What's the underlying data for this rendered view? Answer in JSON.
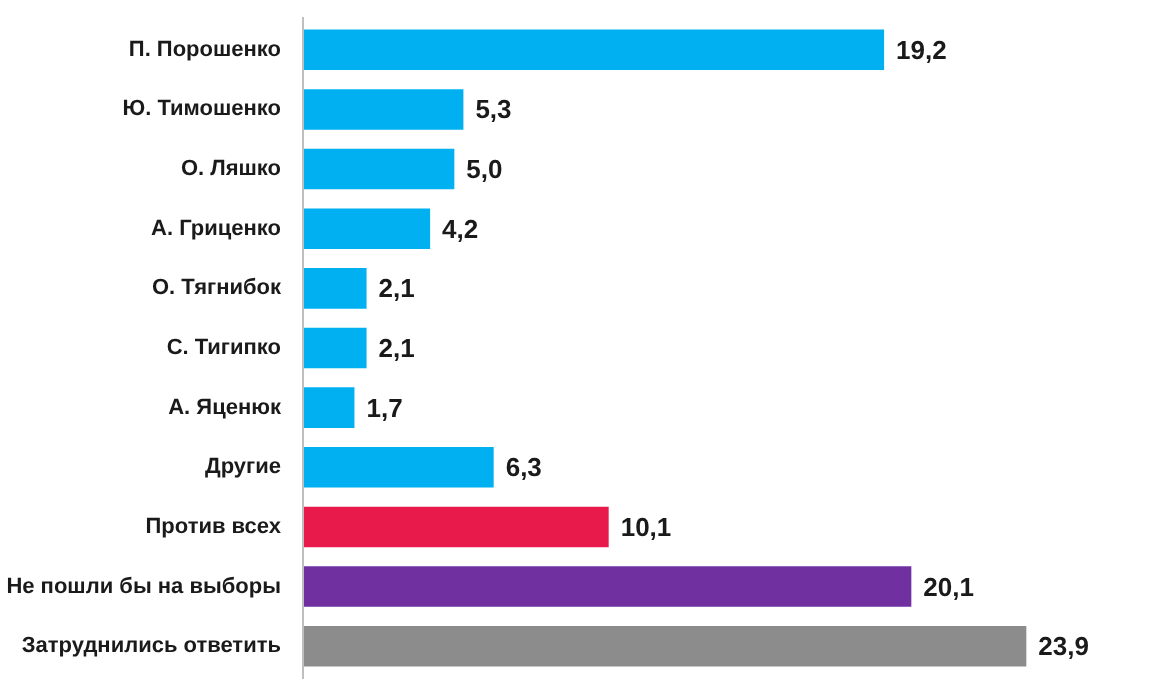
{
  "chart_data": {
    "type": "bar",
    "orientation": "horizontal",
    "categories": [
      "П. Порошенко",
      "Ю. Тимошенко",
      "О. Ляшко",
      "А. Гриценко",
      "О. Тягнибок",
      "С. Тигипко",
      "А. Яценюк",
      "Другие",
      "Против всех",
      "Не пошли бы на выборы",
      "Затруднились ответить"
    ],
    "values": [
      19.2,
      5.3,
      5.0,
      4.2,
      2.1,
      2.1,
      1.7,
      6.3,
      10.1,
      20.1,
      23.9
    ],
    "value_labels": [
      "19,2",
      "5,3",
      "5,0",
      "4,2",
      "2,1",
      "2,1",
      "1,7",
      "6,3",
      "10,1",
      "20,1",
      "23,9"
    ],
    "colors": [
      "#00b0f0",
      "#00b0f0",
      "#00b0f0",
      "#00b0f0",
      "#00b0f0",
      "#00b0f0",
      "#00b0f0",
      "#00b0f0",
      "#e8194b",
      "#7030a0",
      "#8c8c8c"
    ],
    "grid": false
  }
}
